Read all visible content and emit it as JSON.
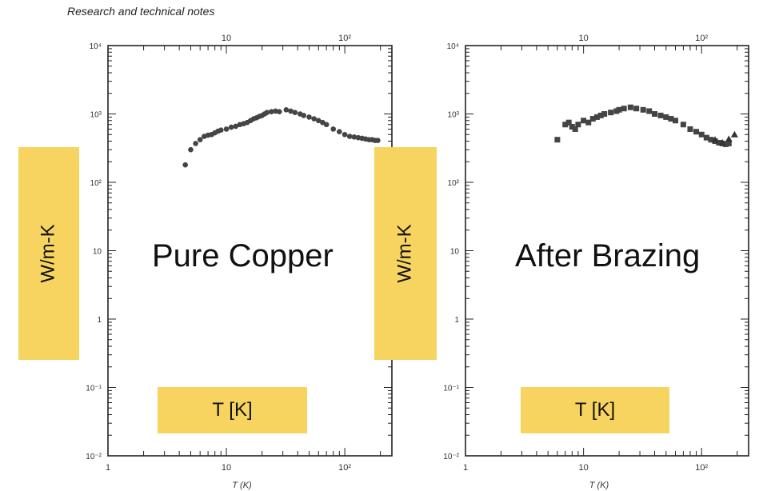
{
  "header": {
    "note": "Research and technical notes"
  },
  "overlays": {
    "ylabel": "W/m-K",
    "xlabel": "T [K]"
  },
  "chart_data": [
    {
      "type": "scatter",
      "title": "Pure Copper",
      "xlabel": "T (K)",
      "xscale": "log",
      "yscale": "log",
      "xlim": [
        1,
        250
      ],
      "ylim": [
        0.01,
        10000
      ],
      "x_ticklabels": [
        "1",
        "10",
        "10²"
      ],
      "y_ticklabels": [
        "10⁻²",
        "10⁻¹",
        "1",
        "10",
        "10²",
        "10³",
        "10⁴"
      ],
      "marker": "circle",
      "x": [
        4.5,
        5,
        5.5,
        6,
        6.5,
        7,
        7.5,
        8,
        8.5,
        9,
        10,
        11,
        12,
        13,
        14,
        15,
        16,
        17,
        18,
        19,
        20,
        21,
        22,
        24,
        26,
        28,
        32,
        35,
        38,
        42,
        45,
        50,
        55,
        60,
        65,
        70,
        80,
        90,
        100,
        110,
        120,
        130,
        140,
        150,
        160,
        170,
        180,
        190
      ],
      "y": [
        180,
        300,
        370,
        420,
        470,
        490,
        500,
        530,
        560,
        580,
        600,
        640,
        660,
        700,
        720,
        750,
        800,
        850,
        880,
        920,
        950,
        1000,
        1050,
        1080,
        1100,
        1080,
        1150,
        1100,
        1050,
        1000,
        950,
        900,
        850,
        800,
        750,
        700,
        600,
        550,
        500,
        470,
        460,
        450,
        440,
        430,
        420,
        420,
        410,
        410
      ]
    },
    {
      "type": "scatter",
      "title": "After Brazing",
      "xlabel": "T (K)",
      "xscale": "log",
      "yscale": "log",
      "xlim": [
        1,
        250
      ],
      "ylim": [
        0.01,
        10000
      ],
      "x_ticklabels": [
        "1",
        "10",
        "10²"
      ],
      "y_ticklabels": [
        "10⁻²",
        "10⁻¹",
        "1",
        "10",
        "10²",
        "10³",
        "10⁴"
      ],
      "series": [
        {
          "marker": "square",
          "x": [
            6,
            7,
            7.5,
            8,
            8.5,
            9,
            10,
            11,
            12,
            13,
            14,
            15,
            17,
            19,
            20,
            22,
            25,
            28,
            32,
            36,
            40,
            45,
            50,
            55,
            60,
            70,
            80,
            90,
            100,
            110,
            120,
            130,
            140,
            150,
            160,
            170
          ],
          "y": [
            420,
            700,
            750,
            650,
            600,
            700,
            800,
            750,
            850,
            900,
            950,
            1000,
            1050,
            1100,
            1150,
            1200,
            1250,
            1200,
            1150,
            1100,
            1000,
            950,
            900,
            850,
            800,
            700,
            600,
            550,
            500,
            450,
            420,
            400,
            380,
            370,
            360,
            370
          ]
        },
        {
          "marker": "triangle",
          "x": [
            130,
            150,
            170,
            190
          ],
          "y": [
            420,
            380,
            430,
            500
          ]
        }
      ]
    }
  ]
}
